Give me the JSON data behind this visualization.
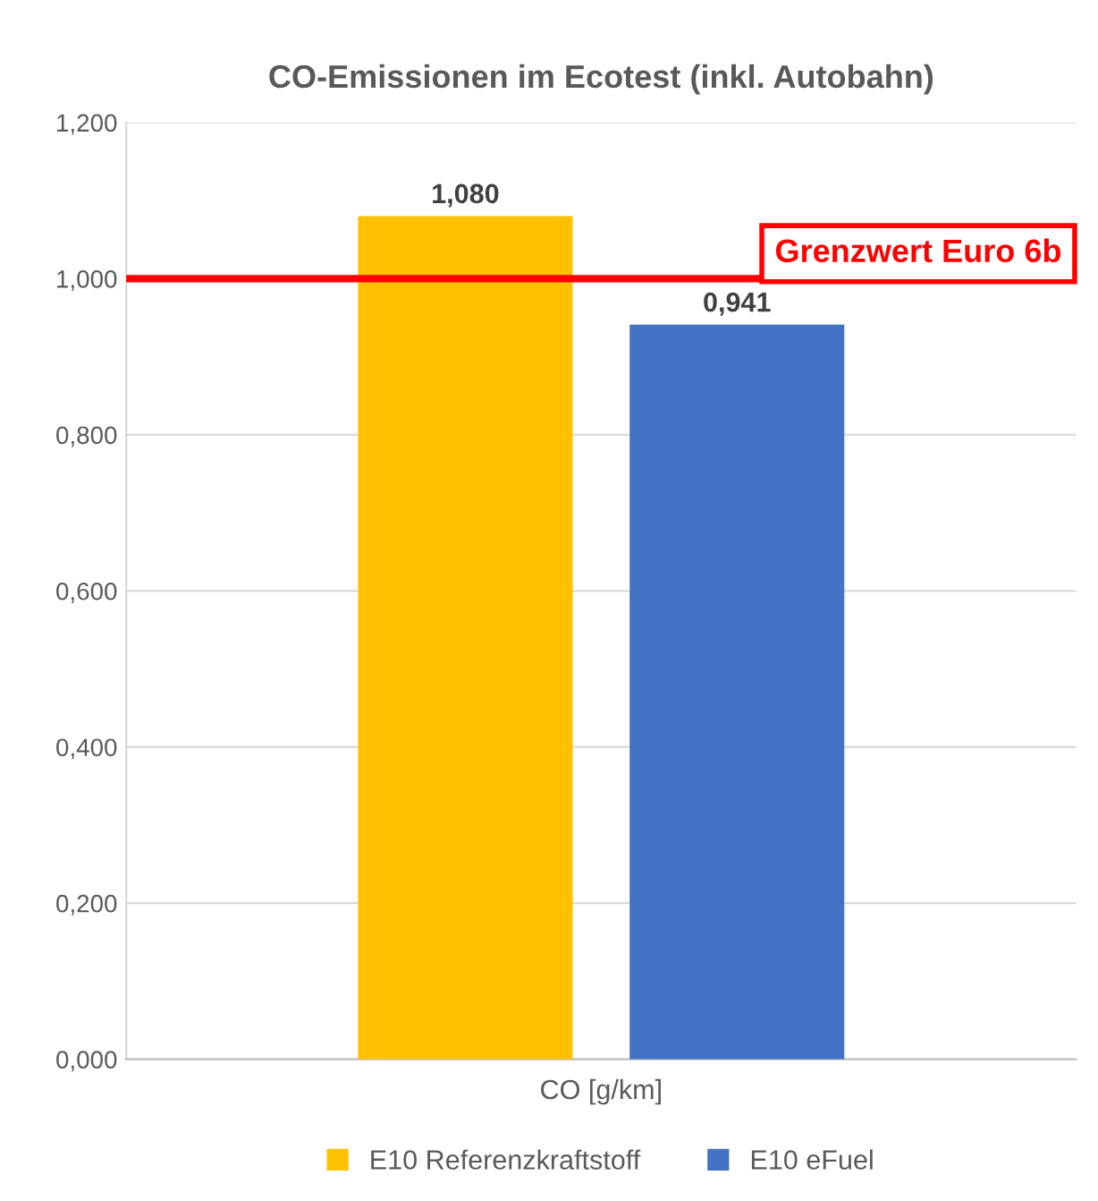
{
  "chart_data": {
    "type": "bar",
    "title": "CO-Emissionen im Ecotest (inkl. Autobahn)",
    "categories": [
      "CO [g/km]"
    ],
    "series": [
      {
        "name": "E10 Referenzkraftstoff",
        "color": "#ffc000",
        "values": [
          1.08
        ],
        "value_labels": [
          "1,080"
        ]
      },
      {
        "name": "E10 eFuel",
        "color": "#4472c4",
        "values": [
          0.941
        ],
        "value_labels": [
          "0,941"
        ]
      }
    ],
    "ylim": [
      0,
      1.2
    ],
    "yticks": [
      {
        "value": 0,
        "label": "0,000"
      },
      {
        "value": 0.2,
        "label": "0,200"
      },
      {
        "value": 0.4,
        "label": "0,400"
      },
      {
        "value": 0.6,
        "label": "0,600"
      },
      {
        "value": 0.8,
        "label": "0,800"
      },
      {
        "value": 1.0,
        "label": "1,000"
      },
      {
        "value": 1.2,
        "label": "1,200"
      }
    ],
    "grid": "y",
    "legend": "bottom",
    "ref_lines": [
      {
        "axis": "y",
        "value": 1.0,
        "label": "Grenzwert Euro 6b",
        "color": "#ff0000"
      }
    ]
  }
}
